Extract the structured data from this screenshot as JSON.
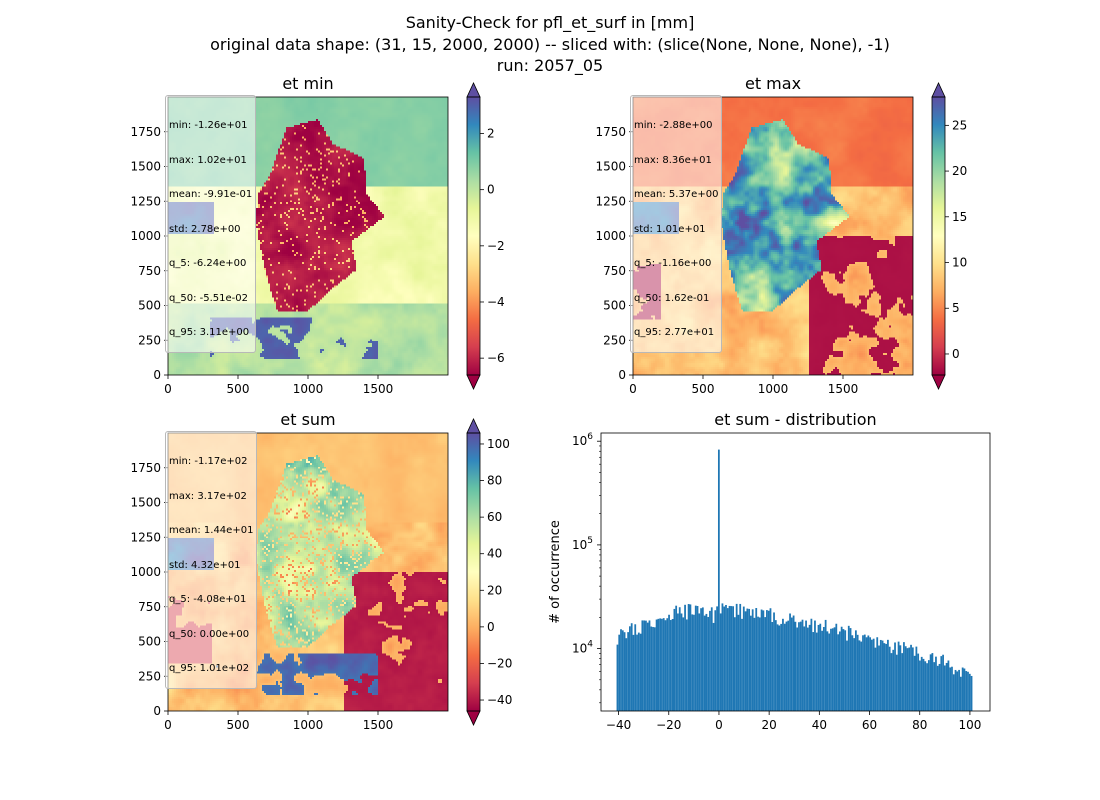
{
  "figure": {
    "title_line1": "Sanity-Check for pfl_et_surf in [mm]",
    "title_line2": "original data shape: (31, 15, 2000, 2000) -- sliced with: (slice(None, None, None), -1)",
    "title_line3": "run: 2057_05"
  },
  "colors": {
    "spectral": [
      "#9e0142",
      "#d53e4f",
      "#f46d43",
      "#fdae61",
      "#fee08b",
      "#ffffbf",
      "#e6f598",
      "#abdda4",
      "#66c2a5",
      "#3288bd",
      "#5e4fa2"
    ],
    "hist_bar": "#1f77b4"
  },
  "chart_data": [
    {
      "type": "heatmap",
      "title": "et min",
      "xlabel": "",
      "ylabel": "",
      "xlim": [
        0,
        2000
      ],
      "ylim": [
        0,
        2000
      ],
      "xticks": [
        "0",
        "500",
        "1000",
        "1500"
      ],
      "yticks": [
        "0",
        "250",
        "500",
        "750",
        "1000",
        "1250",
        "1500",
        "1750"
      ],
      "colorbar": {
        "vmin": -6.6,
        "vmax": 3.3,
        "extend": "both",
        "ticks": [
          "2",
          "0",
          "−2",
          "−4",
          "−6"
        ],
        "tick_values": [
          2,
          0,
          -2,
          -4,
          -6
        ]
      },
      "stats": [
        "min: -1.26e+01",
        "max: 1.02e+01",
        "mean: -9.91e-01",
        "std: 2.78e+00",
        "q_5: -6.24e+00",
        "q_50: -5.51e-02",
        "q_95: 3.11e+00"
      ]
    },
    {
      "type": "heatmap",
      "title": "et max",
      "xlabel": "",
      "ylabel": "",
      "xlim": [
        0,
        2000
      ],
      "ylim": [
        0,
        2000
      ],
      "xticks": [
        "0",
        "500",
        "1000",
        "1500"
      ],
      "yticks": [
        "0",
        "250",
        "500",
        "750",
        "1000",
        "1250",
        "1500",
        "1750"
      ],
      "colorbar": {
        "vmin": -2.3,
        "vmax": 28.1,
        "extend": "both",
        "ticks": [
          "25",
          "20",
          "15",
          "10",
          "5",
          "0"
        ],
        "tick_values": [
          25,
          20,
          15,
          10,
          5,
          0
        ]
      },
      "stats": [
        "min: -2.88e+00",
        "max: 8.36e+01",
        "mean: 5.37e+00",
        "std: 1.01e+01",
        "q_5: -1.16e+00",
        "q_50: 1.62e-01",
        "q_95: 2.77e+01"
      ]
    },
    {
      "type": "heatmap",
      "title": "et sum",
      "xlabel": "",
      "ylabel": "",
      "xlim": [
        0,
        2000
      ],
      "ylim": [
        0,
        2000
      ],
      "xticks": [
        "0",
        "500",
        "1000",
        "1500"
      ],
      "yticks": [
        "0",
        "250",
        "500",
        "750",
        "1000",
        "1250",
        "1500",
        "1750"
      ],
      "colorbar": {
        "vmin": -46,
        "vmax": 106,
        "extend": "both",
        "ticks": [
          "100",
          "80",
          "60",
          "40",
          "20",
          "0",
          "−20",
          "−40"
        ],
        "tick_values": [
          100,
          80,
          60,
          40,
          20,
          0,
          -20,
          -40
        ]
      },
      "stats": [
        "min: -1.17e+02",
        "max: 3.17e+02",
        "mean: 1.44e+01",
        "std: 4.32e+01",
        "q_5: -4.08e+01",
        "q_50: 0.00e+00",
        "q_95: 1.01e+02"
      ]
    },
    {
      "type": "bar",
      "title": "et sum - distribution",
      "xlabel": "",
      "ylabel": "# of occurrence",
      "yscale": "log",
      "xlim": [
        -47,
        108
      ],
      "ylim": [
        2500,
        1200000
      ],
      "xticks": [
        "−40",
        "−20",
        "0",
        "20",
        "40",
        "60",
        "80",
        "100"
      ],
      "xtick_values": [
        -40,
        -20,
        0,
        20,
        40,
        60,
        80,
        100
      ],
      "yticks": [
        "10^4",
        "10^5",
        "10^6"
      ],
      "ytick_values": [
        10000,
        100000,
        1000000
      ],
      "bin_range": [
        -40.8,
        101
      ],
      "bins": 200,
      "envelope": {
        "x": [
          -40.8,
          -35,
          -30,
          -25,
          -20,
          -15,
          -10,
          -5,
          -1,
          0,
          5,
          10,
          20,
          30,
          40,
          50,
          60,
          70,
          80,
          90,
          100,
          101
        ],
        "y": [
          13000,
          15000,
          17000,
          19000,
          21000,
          23000,
          23000,
          22000,
          21000,
          24000,
          24000,
          23000,
          21000,
          19000,
          17000,
          14500,
          12500,
          10500,
          9000,
          7500,
          5500,
          5000
        ]
      },
      "spike": {
        "x": 0,
        "y": 830000
      }
    }
  ]
}
